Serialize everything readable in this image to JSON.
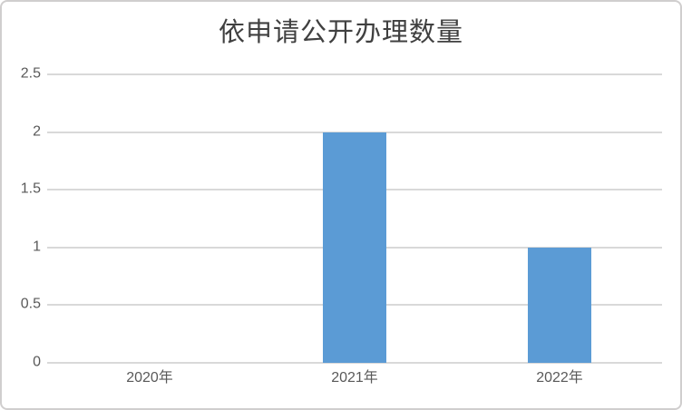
{
  "chart": {
    "title": "依申请公开办理数量"
  },
  "colors": {
    "bar": "#5B9BD5",
    "gridline": "#D9D9D9",
    "axis_label": "#595959",
    "title": "#404040",
    "frame_border": "#D0CECE",
    "background": "#FFFFFF"
  },
  "chart_data": {
    "type": "bar",
    "title": "依申请公开办理数量",
    "categories": [
      "2020年",
      "2021年",
      "2022年"
    ],
    "values": [
      0,
      2,
      1
    ],
    "xlabel": "",
    "ylabel": "",
    "ylim": [
      0,
      2.5
    ],
    "ytick_labels": [
      "0",
      "0.5",
      "1",
      "1.5",
      "2",
      "2.5"
    ],
    "grid": "horizontal-on",
    "legend": "none",
    "bar_color": "#5B9BD5",
    "gridline_color": "#D9D9D9",
    "axis_label_color": "#595959"
  }
}
